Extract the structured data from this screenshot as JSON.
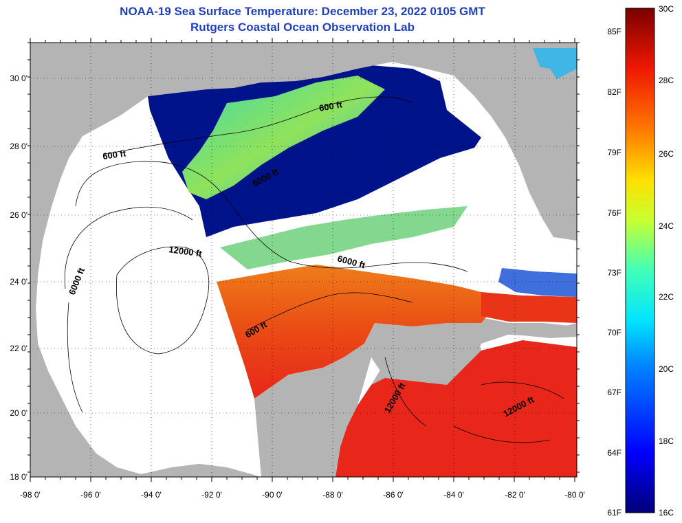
{
  "title_line1": "NOAA-19 Sea Surface Temperature:  December 23, 2022 0105 GMT",
  "title_line2": "Rutgers Coastal Ocean Observation Lab",
  "lat_labels": [
    "30 0'",
    "28 0'",
    "26 0'",
    "24 0'",
    "22 0'",
    "20 0'",
    "18 0'"
  ],
  "lon_labels": [
    "-98 0'",
    "-96 0'",
    "-94 0'",
    "-92 0'",
    "-90 0'",
    "-88 0'",
    "-86 0'",
    "-84 0'",
    "-82 0'",
    "-80 0'"
  ],
  "contour_labels": {
    "c600a": "600 ft",
    "c600b": "600 ft",
    "c600c": "600 ft",
    "c6000a": "6000 ft",
    "c6000b": "6000 ft",
    "c6000c": "6000 ft",
    "c12000a": "12000 ft",
    "c12000b": "12000 ft",
    "c12000c": "12000 ft"
  },
  "colorbar": {
    "fahrenheit": [
      "85F",
      "82F",
      "79F",
      "76F",
      "73F",
      "70F",
      "67F",
      "64F",
      "61F"
    ],
    "celsius": [
      "30C",
      "28C",
      "26C",
      "24C",
      "22C",
      "20C",
      "18C",
      "16C"
    ]
  },
  "colors": {
    "land": "#b4b4b4",
    "no_data": "#ffffff",
    "title": "#1f3fbf",
    "cold": "#00138a",
    "warm": "#e8261a"
  }
}
